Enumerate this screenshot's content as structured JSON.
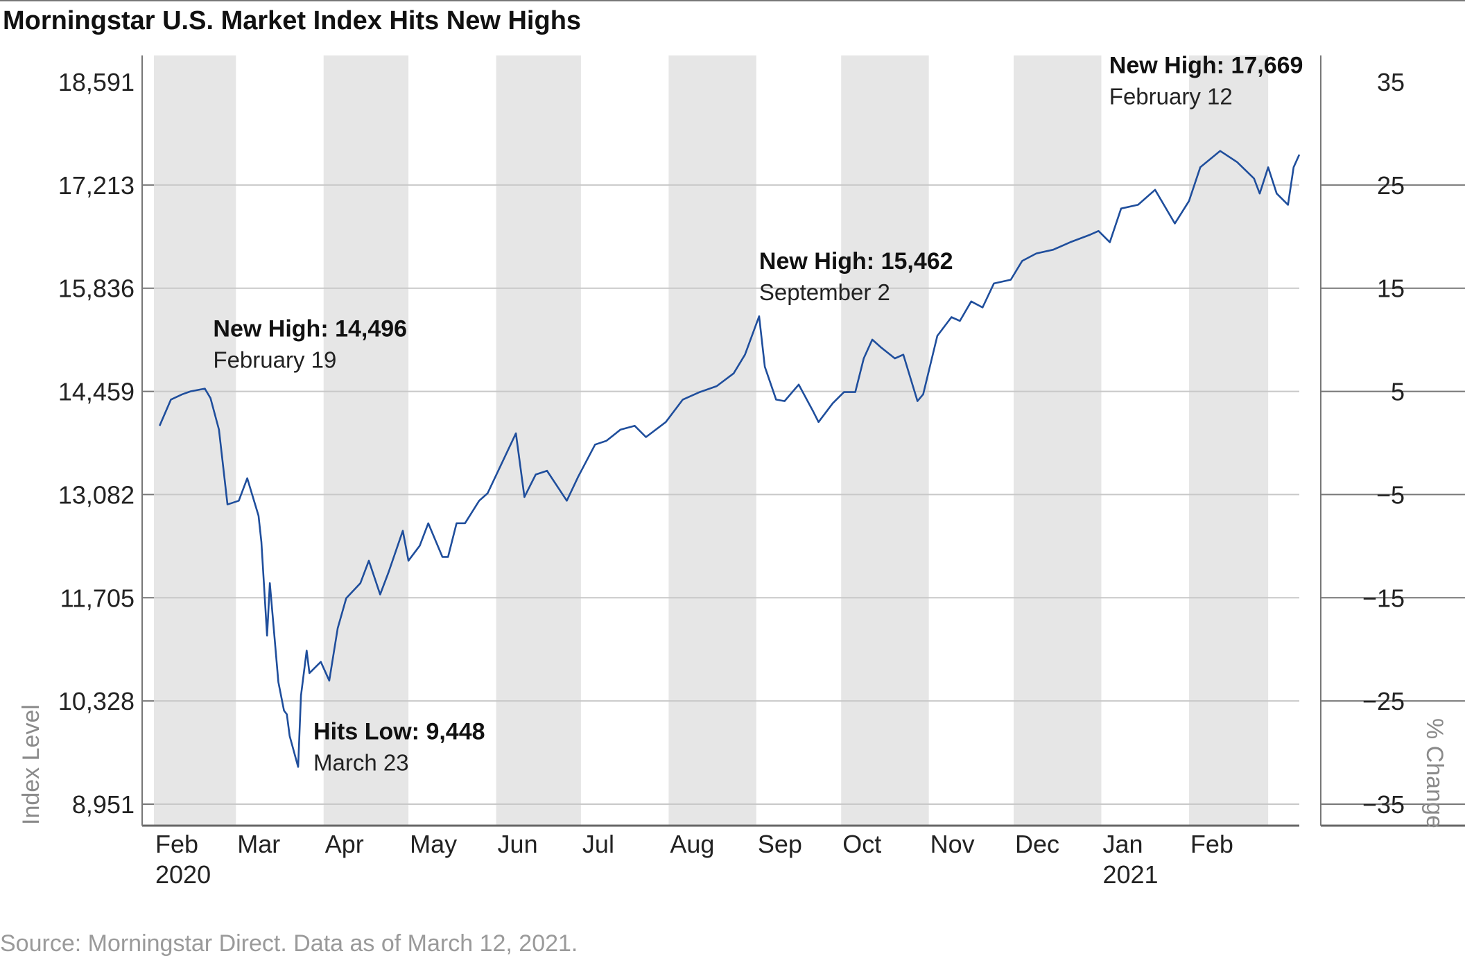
{
  "chart_data": {
    "type": "line",
    "title": "Morningstar U.S. Market Index Hits New Highs",
    "ylabel": "Index Level",
    "y2label": "% Change",
    "source": "Source: Morningstar Direct.  Data as of March 12, 2021.",
    "ylim": [
      8951,
      18591
    ],
    "y2lim": [
      -35,
      35
    ],
    "yticks": [
      "18,591",
      "17,213",
      "15,836",
      "14,459",
      "13,082",
      "11,705",
      "10,328",
      "8,951"
    ],
    "y2ticks": [
      "35",
      "25",
      "15",
      "5",
      "−5",
      "−15",
      "−25",
      "−35"
    ],
    "months": [
      "Feb",
      "Mar",
      "Apr",
      "May",
      "Jun",
      "Jul",
      "Aug",
      "Sep",
      "Oct",
      "Nov",
      "Dec",
      "Jan",
      "Feb"
    ],
    "years": [
      {
        "label": "2020",
        "month_index": 0
      },
      {
        "label": "2021",
        "month_index": 11
      }
    ],
    "grid": true,
    "shaded_bands": "alternating months",
    "series": [
      {
        "color": "#1f4e9c",
        "points": [
          [
            "2020-02-03",
            14000
          ],
          [
            "2020-02-07",
            14350
          ],
          [
            "2020-02-11",
            14420
          ],
          [
            "2020-02-14",
            14460
          ],
          [
            "2020-02-19",
            14496
          ],
          [
            "2020-02-21",
            14370
          ],
          [
            "2020-02-24",
            13950
          ],
          [
            "2020-02-27",
            12950
          ],
          [
            "2020-03-02",
            13000
          ],
          [
            "2020-03-05",
            13300
          ],
          [
            "2020-03-09",
            12800
          ],
          [
            "2020-03-10",
            12450
          ],
          [
            "2020-03-12",
            11200
          ],
          [
            "2020-03-13",
            11900
          ],
          [
            "2020-03-16",
            10580
          ],
          [
            "2020-03-18",
            10200
          ],
          [
            "2020-03-19",
            10150
          ],
          [
            "2020-03-20",
            9860
          ],
          [
            "2020-03-23",
            9448
          ],
          [
            "2020-03-24",
            10400
          ],
          [
            "2020-03-26",
            11000
          ],
          [
            "2020-03-27",
            10700
          ],
          [
            "2020-03-31",
            10850
          ],
          [
            "2020-04-03",
            10600
          ],
          [
            "2020-04-06",
            11300
          ],
          [
            "2020-04-09",
            11700
          ],
          [
            "2020-04-14",
            11900
          ],
          [
            "2020-04-17",
            12200
          ],
          [
            "2020-04-21",
            11750
          ],
          [
            "2020-04-24",
            12050
          ],
          [
            "2020-04-29",
            12600
          ],
          [
            "2020-05-01",
            12200
          ],
          [
            "2020-05-05",
            12400
          ],
          [
            "2020-05-08",
            12700
          ],
          [
            "2020-05-13",
            12250
          ],
          [
            "2020-05-15",
            12250
          ],
          [
            "2020-05-18",
            12700
          ],
          [
            "2020-05-21",
            12700
          ],
          [
            "2020-05-26",
            13000
          ],
          [
            "2020-05-29",
            13100
          ],
          [
            "2020-06-03",
            13500
          ],
          [
            "2020-06-08",
            13900
          ],
          [
            "2020-06-11",
            13050
          ],
          [
            "2020-06-15",
            13350
          ],
          [
            "2020-06-19",
            13400
          ],
          [
            "2020-06-26",
            13000
          ],
          [
            "2020-06-30",
            13320
          ],
          [
            "2020-07-06",
            13750
          ],
          [
            "2020-07-10",
            13800
          ],
          [
            "2020-07-15",
            13950
          ],
          [
            "2020-07-20",
            14000
          ],
          [
            "2020-07-24",
            13850
          ],
          [
            "2020-07-31",
            14050
          ],
          [
            "2020-08-06",
            14350
          ],
          [
            "2020-08-12",
            14450
          ],
          [
            "2020-08-18",
            14530
          ],
          [
            "2020-08-24",
            14700
          ],
          [
            "2020-08-28",
            14950
          ],
          [
            "2020-09-02",
            15462
          ],
          [
            "2020-09-04",
            14790
          ],
          [
            "2020-09-08",
            14350
          ],
          [
            "2020-09-11",
            14330
          ],
          [
            "2020-09-16",
            14550
          ],
          [
            "2020-09-21",
            14200
          ],
          [
            "2020-09-23",
            14050
          ],
          [
            "2020-09-28",
            14300
          ],
          [
            "2020-10-02",
            14450
          ],
          [
            "2020-10-06",
            14450
          ],
          [
            "2020-10-09",
            14900
          ],
          [
            "2020-10-12",
            15150
          ],
          [
            "2020-10-15",
            15050
          ],
          [
            "2020-10-20",
            14900
          ],
          [
            "2020-10-23",
            14950
          ],
          [
            "2020-10-28",
            14330
          ],
          [
            "2020-10-30",
            14420
          ],
          [
            "2020-11-04",
            15200
          ],
          [
            "2020-11-09",
            15450
          ],
          [
            "2020-11-12",
            15400
          ],
          [
            "2020-11-16",
            15660
          ],
          [
            "2020-11-20",
            15580
          ],
          [
            "2020-11-24",
            15900
          ],
          [
            "2020-11-30",
            15950
          ],
          [
            "2020-12-04",
            16200
          ],
          [
            "2020-12-09",
            16300
          ],
          [
            "2020-12-15",
            16350
          ],
          [
            "2020-12-21",
            16450
          ],
          [
            "2020-12-28",
            16550
          ],
          [
            "2020-12-31",
            16600
          ],
          [
            "2021-01-04",
            16450
          ],
          [
            "2021-01-08",
            16900
          ],
          [
            "2021-01-14",
            16950
          ],
          [
            "2021-01-20",
            17150
          ],
          [
            "2021-01-27",
            16700
          ],
          [
            "2021-02-01",
            17000
          ],
          [
            "2021-02-05",
            17450
          ],
          [
            "2021-02-12",
            17669
          ],
          [
            "2021-02-18",
            17520
          ],
          [
            "2021-02-24",
            17300
          ],
          [
            "2021-02-26",
            17100
          ],
          [
            "2021-03-01",
            17450
          ],
          [
            "2021-03-04",
            17100
          ],
          [
            "2021-03-08",
            16950
          ],
          [
            "2021-03-10",
            17450
          ],
          [
            "2021-03-12",
            17620
          ]
        ]
      }
    ],
    "annotations": [
      {
        "head": "New High: 14,496",
        "sub": "February 19",
        "x": "2020-02-19",
        "y": 14496
      },
      {
        "head": "Hits Low: 9,448",
        "sub": "March 23",
        "x": "2020-03-23",
        "y": 9448
      },
      {
        "head": "New High: 15,462",
        "sub": "September 2",
        "x": "2020-09-02",
        "y": 15462
      },
      {
        "head": "New High: 17,669",
        "sub": "February 12",
        "x": "2021-02-12",
        "y": 17669
      }
    ]
  }
}
